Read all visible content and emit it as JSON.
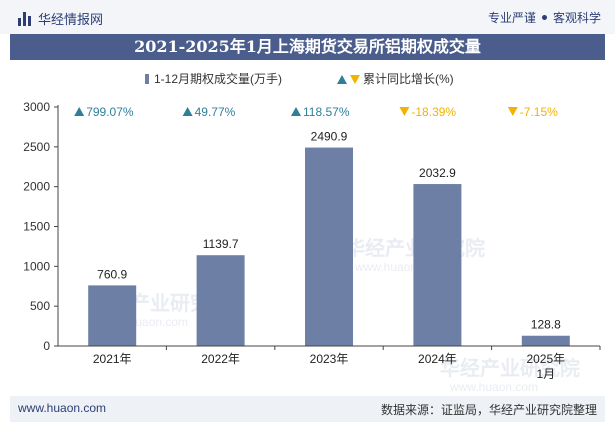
{
  "header": {
    "brand": "华经情报网",
    "slogan_left": "专业严谨",
    "slogan_right": "客观科学"
  },
  "title": "2021-2025年1月上海期货交易所铝期权成交量",
  "colors": {
    "bar": "#6e7fa6",
    "up": "#2f7f9a",
    "down": "#f2b300",
    "title_bg": "#4a5d8c"
  },
  "legend": {
    "bar_label": "1-12月期权成交量(万手)",
    "growth_label": "累计同比增长(%)"
  },
  "watermark": "华经产业研究院",
  "watermark_url": "www.huaon.com",
  "footer": {
    "url": "www.huaon.com",
    "source": "数据来源：证监局，华经产业研究院整理"
  },
  "chart_data": {
    "type": "bar",
    "title": "2021-2025年1月上海期货交易所铝期权成交量",
    "categories": [
      "2021年",
      "2022年",
      "2023年",
      "2024年",
      "2025年\n1月"
    ],
    "series": [
      {
        "name": "1-12月期权成交量(万手)",
        "values": [
          760.9,
          1139.7,
          2490.9,
          2032.9,
          128.8
        ]
      }
    ],
    "value_labels": [
      "760.9",
      "1139.7",
      "2490.9",
      "2032.9",
      "128.8"
    ],
    "growth": [
      {
        "direction": "up",
        "value": 799.07,
        "label": "799.07%"
      },
      {
        "direction": "up",
        "value": 49.77,
        "label": "49.77%"
      },
      {
        "direction": "up",
        "value": 118.57,
        "label": "118.57%"
      },
      {
        "direction": "down",
        "value": -18.39,
        "label": "-18.39%"
      },
      {
        "direction": "down",
        "value": -7.15,
        "label": "-7.15%"
      }
    ],
    "ylim": [
      0,
      3000
    ],
    "yticks": [
      0,
      500,
      1000,
      1500,
      2000,
      2500,
      3000
    ],
    "xlabel": "",
    "ylabel": "",
    "legend_position": "top-center",
    "grid": false
  }
}
